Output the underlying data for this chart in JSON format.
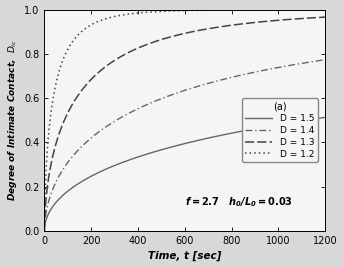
{
  "xlabel": "Time, t [sec]",
  "ylabel": "Degree of Intimate Contact,  $D_{ic}$",
  "xlim": [
    0,
    1200
  ],
  "ylim": [
    0.0,
    1.0
  ],
  "xticks": [
    0,
    200,
    400,
    600,
    800,
    1000,
    1200
  ],
  "yticks": [
    0.0,
    0.2,
    0.4,
    0.6,
    0.8,
    1.0
  ],
  "curves": [
    {
      "linestyle": "-",
      "color": "#666666",
      "label": "D = 1.5",
      "k": 0.018,
      "alpha": 0.52
    },
    {
      "linestyle": "-.",
      "color": "#666666",
      "label": "D = 1.4",
      "k": 0.028,
      "alpha": 0.56
    },
    {
      "linestyle": "--",
      "color": "#444444",
      "label": "D = 1.3",
      "k": 0.048,
      "alpha": 0.6
    },
    {
      "linestyle": ":",
      "color": "#444444",
      "label": "D = 1.2",
      "k": 0.09,
      "alpha": 0.64
    }
  ],
  "background_color": "#f5f5f5",
  "figure_facecolor": "#d8d8d8"
}
